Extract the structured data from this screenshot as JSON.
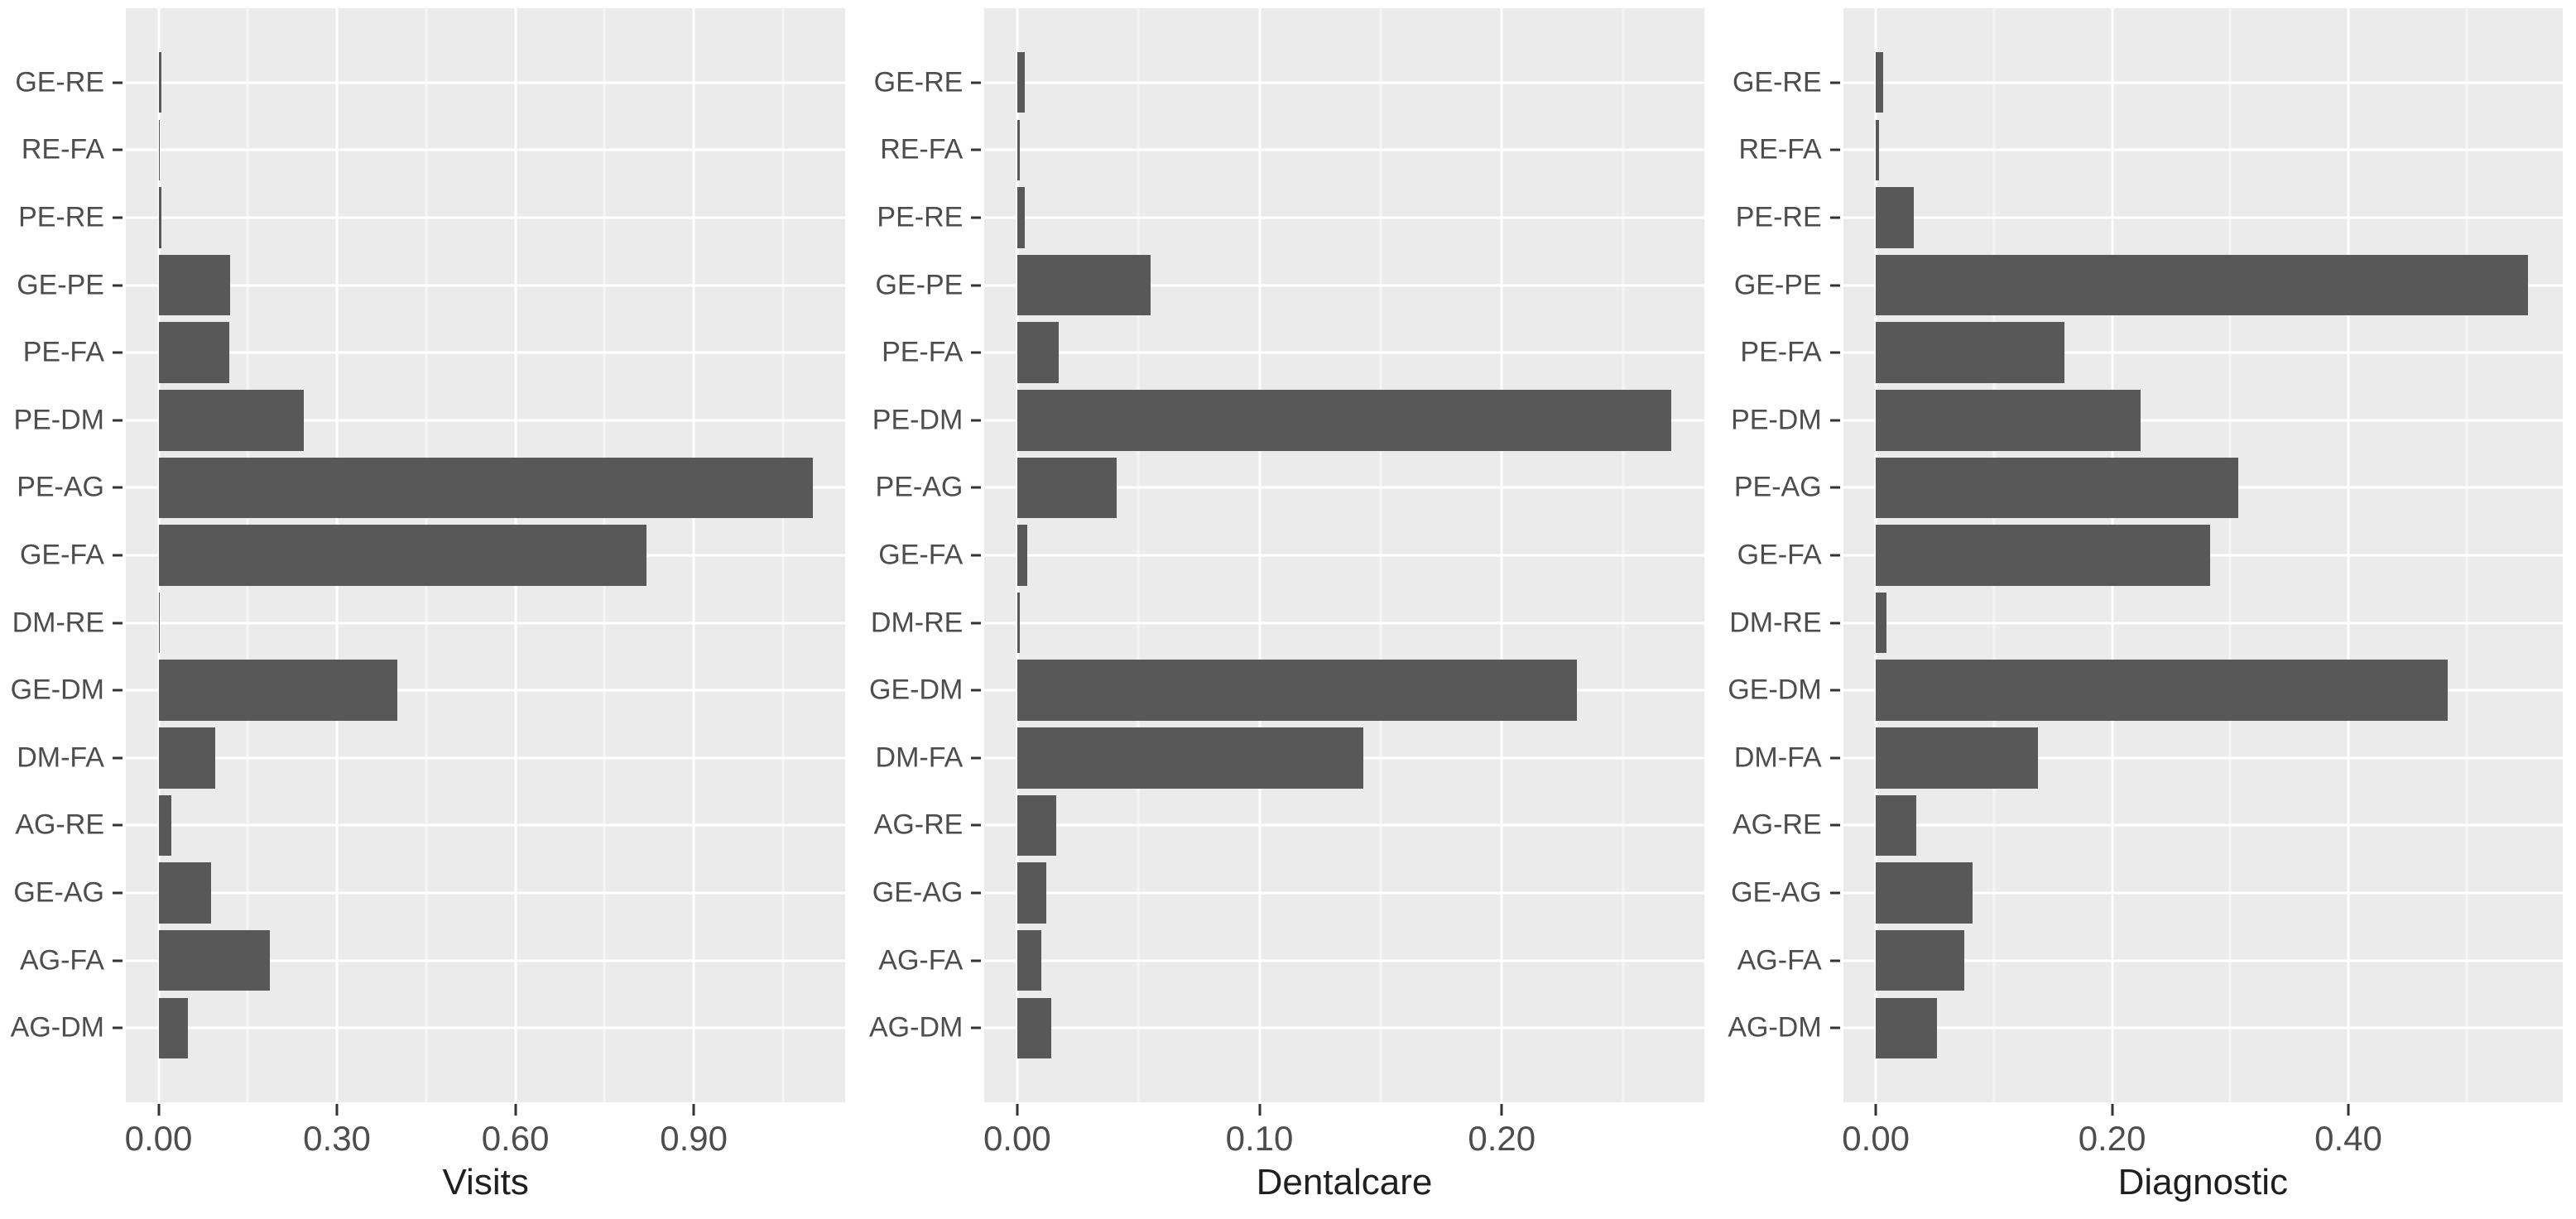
{
  "style": {
    "page_background": "#ffffff",
    "panel_background": "#ebebeb",
    "bar_color": "#585858",
    "grid_major_color": "#ffffff",
    "grid_minor_color": "#f4f4f4",
    "axis_text_color": "#4d4d4d",
    "tick_mark_color": "#333333",
    "axis_title_color": "#1f1f1f"
  },
  "chart_data": [
    {
      "type": "bar",
      "orientation": "horizontal",
      "xlabel": "Visits",
      "categories": [
        "GE-RE",
        "RE-FA",
        "PE-RE",
        "GE-PE",
        "PE-FA",
        "PE-DM",
        "PE-AG",
        "GE-FA",
        "DM-RE",
        "GE-DM",
        "DM-FA",
        "AG-RE",
        "GE-AG",
        "AG-FA",
        "AG-DM"
      ],
      "values": [
        0.005,
        0.001,
        0.005,
        0.121,
        0.119,
        0.244,
        1.1,
        0.82,
        0.002,
        0.402,
        0.096,
        0.021,
        0.088,
        0.187,
        0.049
      ],
      "x_ticks": [
        0,
        0.3,
        0.6,
        0.9
      ],
      "x_tick_labels": [
        "0.00",
        "0.30",
        "0.60",
        "0.90"
      ],
      "x_minor_gridlines": [
        0.15,
        0.45,
        0.75,
        1.05
      ],
      "xlim": [
        -0.055,
        1.155
      ],
      "grid": true,
      "legend": "none"
    },
    {
      "type": "bar",
      "orientation": "horizontal",
      "xlabel": "Dentalcare",
      "categories": [
        "GE-RE",
        "RE-FA",
        "PE-RE",
        "GE-PE",
        "PE-FA",
        "PE-DM",
        "PE-AG",
        "GE-FA",
        "DM-RE",
        "GE-DM",
        "DM-FA",
        "AG-RE",
        "GE-AG",
        "AG-FA",
        "AG-DM"
      ],
      "values": [
        0.003,
        0.001,
        0.003,
        0.055,
        0.017,
        0.27,
        0.041,
        0.004,
        0.001,
        0.231,
        0.143,
        0.016,
        0.012,
        0.01,
        0.014
      ],
      "x_ticks": [
        0,
        0.1,
        0.2
      ],
      "x_tick_labels": [
        "0.00",
        "0.10",
        "0.20"
      ],
      "x_minor_gridlines": [
        0.05,
        0.15,
        0.25
      ],
      "xlim": [
        -0.0135,
        0.2835
      ],
      "grid": true,
      "legend": "none"
    },
    {
      "type": "bar",
      "orientation": "horizontal",
      "xlabel": "Diagnostic",
      "categories": [
        "GE-RE",
        "RE-FA",
        "PE-RE",
        "GE-PE",
        "PE-FA",
        "PE-DM",
        "PE-AG",
        "GE-FA",
        "DM-RE",
        "GE-DM",
        "DM-FA",
        "AG-RE",
        "GE-AG",
        "AG-FA",
        "AG-DM"
      ],
      "values": [
        0.006,
        0.003,
        0.032,
        0.552,
        0.16,
        0.224,
        0.307,
        0.283,
        0.009,
        0.484,
        0.137,
        0.034,
        0.082,
        0.075,
        0.052
      ],
      "x_ticks": [
        0,
        0.2,
        0.4
      ],
      "x_tick_labels": [
        "0.00",
        "0.20",
        "0.40"
      ],
      "x_minor_gridlines": [
        0.1,
        0.3,
        0.5
      ],
      "xlim": [
        -0.0277,
        0.5815
      ],
      "grid": true,
      "legend": "none"
    }
  ]
}
